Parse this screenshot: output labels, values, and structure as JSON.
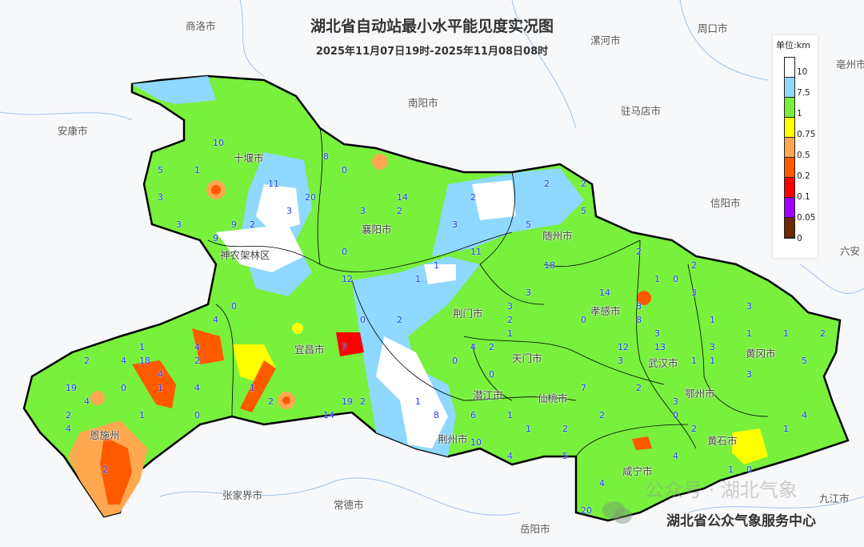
{
  "header": {
    "title": "湖北省自动站最小水平能见度实况图",
    "subtitle": "2025年11月07日19时-2025年11月08日08时"
  },
  "legend": {
    "unit": "单位:km",
    "labels": [
      "10",
      "7.5",
      "1",
      "0.75",
      "0.5",
      "0.2",
      "0.1",
      "0.05",
      "0"
    ],
    "colors": [
      "#ffffff",
      "#8fd8ff",
      "#78f03c",
      "#ffff00",
      "#ffa850",
      "#ff5a00",
      "#ff0000",
      "#a000ff",
      "#6e2800"
    ]
  },
  "cities_hubei": [
    "十堰市",
    "襄阳市",
    "随州市",
    "神农架林区",
    "荆门市",
    "孝感市",
    "黄冈市",
    "宜昌市",
    "天门市",
    "潜江市",
    "仙桃市",
    "武汉市",
    "鄂州市",
    "黄石市",
    "咸宁市",
    "荆州市",
    "恩施州"
  ],
  "cities_outer": [
    "商洛市",
    "南阳市",
    "漯河市",
    "周口市",
    "亳州市",
    "安康市",
    "驻马店市",
    "信阳市",
    "六安",
    "张家界市",
    "常德市",
    "岳阳市",
    "九江市"
  ],
  "stations": [
    "20",
    "2",
    "1",
    "4",
    "18",
    "1",
    "20",
    "0",
    "1",
    "0",
    "1",
    "0",
    "5",
    "1",
    "0",
    "1",
    "10",
    "7",
    "1",
    "14",
    "10",
    "2",
    "14",
    "8",
    "19",
    "11",
    "4",
    "3",
    "1",
    "9",
    "12",
    "12",
    "19",
    "14",
    "18",
    "13",
    "9",
    "5",
    "4",
    "3",
    "2",
    "1",
    "0",
    "0",
    "8",
    "2",
    "11",
    "7",
    "2",
    "3",
    "1",
    "0",
    "2",
    "3",
    "2",
    "1",
    "2",
    "0",
    "1",
    "3",
    "4",
    "4",
    "4",
    "5",
    "3",
    "4",
    "3",
    "2",
    "0",
    "2",
    "4",
    "2",
    "3",
    "4",
    "8",
    "5",
    "2",
    "1",
    "3",
    "2",
    "3",
    "3",
    "1",
    "0",
    "2",
    "3",
    "4",
    "8",
    "4",
    "6",
    "2",
    "5",
    "0",
    "1",
    "2",
    "3",
    "2",
    "2",
    "2",
    "3",
    "1",
    "1",
    "0",
    "4",
    "2",
    "2",
    "1",
    "1"
  ],
  "watermark": "公众号 · 湖北气象",
  "footer": "湖北省公众气象服务中心",
  "icons": {
    "watermark": "wechat-icon"
  }
}
